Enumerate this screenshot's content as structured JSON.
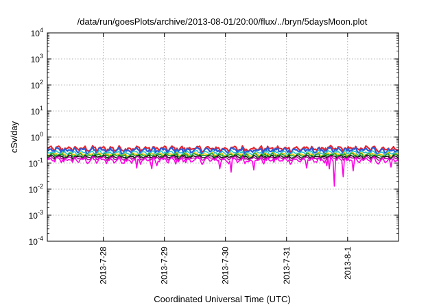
{
  "chart_data": {
    "type": "line",
    "title": "/data/run/goesPlots/archive/2013-08-01/20:00/flux/../bryn/5daysMoon.plot",
    "xlabel": "Coordinated Universal Time (UTC)",
    "ylabel": "cSv/day",
    "y_scale": "log",
    "ylim": [
      0.0001,
      10000
    ],
    "y_ticks": [
      {
        "base": "10",
        "exp": "-4",
        "value": 0.0001
      },
      {
        "base": "10",
        "exp": "-3",
        "value": 0.001
      },
      {
        "base": "10",
        "exp": "-2",
        "value": 0.01
      },
      {
        "base": "10",
        "exp": "-1",
        "value": 0.1
      },
      {
        "base": "10",
        "exp": "0",
        "value": 1
      },
      {
        "base": "10",
        "exp": "1",
        "value": 10
      },
      {
        "base": "10",
        "exp": "2",
        "value": 100
      },
      {
        "base": "10",
        "exp": "3",
        "value": 1000
      },
      {
        "base": "10",
        "exp": "4",
        "value": 10000
      }
    ],
    "x_type": "date",
    "xlim": [
      "2013-07-27 02:00",
      "2013-08-01 20:00"
    ],
    "x_ticks": [
      "2013-7-28",
      "2013-7-29",
      "2013-7-30",
      "2013-7-31",
      "2013-8-1"
    ],
    "grid": true,
    "series": [
      {
        "color": "#e8242e",
        "typical": 0.36,
        "amplitude": 0.13,
        "min": 0.27
      },
      {
        "color": "#2b5cd6",
        "typical": 0.31,
        "amplitude": 0.12,
        "min": 0.22
      },
      {
        "color": "#2ec3c9",
        "typical": 0.25,
        "amplitude": 0.07,
        "min": 0.19
      },
      {
        "color": "#f5c400",
        "typical": 0.215,
        "amplitude": 0.05,
        "min": 0.17
      },
      {
        "color": "#1a9e2e",
        "typical": 0.2,
        "amplitude": 0.05,
        "min": 0.16
      },
      {
        "color": "#1a1a1a",
        "typical": 0.175,
        "amplitude": 0.04,
        "min": 0.14
      },
      {
        "color": "#b5179e",
        "typical": 0.155,
        "amplitude": 0.04,
        "min": 0.12
      },
      {
        "color": "#ff00e6",
        "typical": 0.13,
        "amplitude": 0.05,
        "min": 0.013,
        "dips": [
          {
            "x": "2013-07-28 13:00",
            "y": 0.065
          },
          {
            "x": "2013-07-28 19:00",
            "y": 0.06
          },
          {
            "x": "2013-07-28 21:00",
            "y": 0.08
          },
          {
            "x": "2013-07-29 22:00",
            "y": 0.06
          },
          {
            "x": "2013-07-30 02:00",
            "y": 0.045
          },
          {
            "x": "2013-07-30 11:00",
            "y": 0.055
          },
          {
            "x": "2013-07-31 08:00",
            "y": 0.065
          },
          {
            "x": "2013-07-31 16:00",
            "y": 0.08
          },
          {
            "x": "2013-07-31 17:00",
            "y": 0.06
          },
          {
            "x": "2013-07-31 19:00",
            "y": 0.013
          },
          {
            "x": "2013-07-31 22:00",
            "y": 0.03
          },
          {
            "x": "2013-08-01 02:00",
            "y": 0.05
          },
          {
            "x": "2013-08-01 17:00",
            "y": 0.07
          }
        ]
      }
    ]
  }
}
